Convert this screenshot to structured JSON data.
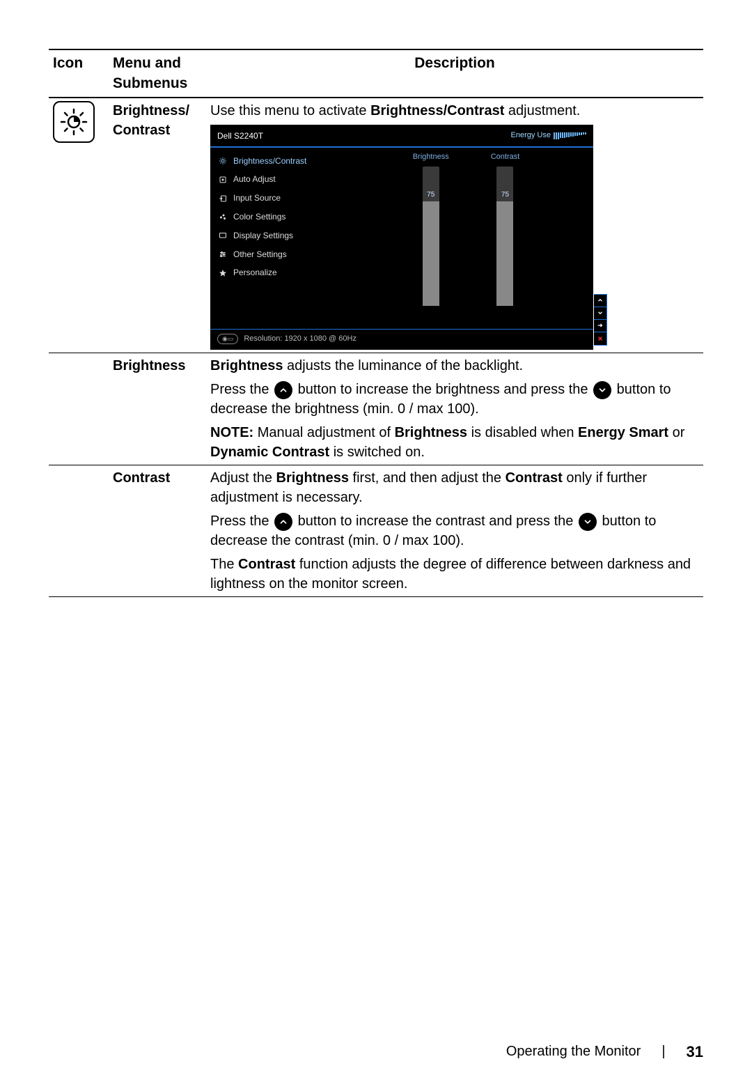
{
  "headers": {
    "icon": "Icon",
    "menu": "Menu and Submenus",
    "desc": "Description"
  },
  "row1": {
    "menu_l1": "Brightness/",
    "menu_l2": "Contrast",
    "desc_pre": "Use this menu to activate ",
    "desc_bold": "Brightness/Contrast",
    "desc_post": " adjustment."
  },
  "osd": {
    "model": "Dell S2240T",
    "energy_label": "Energy Use",
    "energy_bars": [
      10,
      10,
      10,
      8,
      8,
      8,
      7,
      7,
      6,
      6,
      5,
      5,
      4,
      4,
      3,
      3
    ],
    "menu": [
      {
        "label": "Brightness/Contrast",
        "active": true,
        "icon": "sun"
      },
      {
        "label": "Auto Adjust",
        "active": false,
        "icon": "target"
      },
      {
        "label": "Input Source",
        "active": false,
        "icon": "input"
      },
      {
        "label": "Color Settings",
        "active": false,
        "icon": "palette"
      },
      {
        "label": "Display Settings",
        "active": false,
        "icon": "display"
      },
      {
        "label": "Other Settings",
        "active": false,
        "icon": "sliders"
      },
      {
        "label": "Personalize",
        "active": false,
        "icon": "star"
      }
    ],
    "sliders": {
      "brightness": {
        "label": "Brightness",
        "value": 75,
        "max": 100
      },
      "contrast": {
        "label": "Contrast",
        "value": 75,
        "max": 100
      }
    },
    "footer": "Resolution: 1920 x 1080 @ 60Hz",
    "side_buttons": [
      "up",
      "down",
      "right",
      "close"
    ],
    "colors": {
      "bg": "#000000",
      "accent": "#1e6fd6",
      "active_text": "#9ecfff",
      "slider_bg": "#3a3a3a",
      "slider_fill": "#888888",
      "close": "#ff3838"
    }
  },
  "row2": {
    "menu": "Brightness",
    "p1_bold": "Brightness",
    "p1_rest": " adjusts the luminance of the backlight.",
    "p2_a": "Press the ",
    "p2_b": " button to increase the brightness and press the ",
    "p2_c": " button to decrease the brightness (min. 0 / max 100).",
    "note_label": "NOTE:",
    "note_a": " Manual adjustment of ",
    "note_b1": "Brightness",
    "note_c": " is disabled when ",
    "note_b2": "Energy Smart",
    "note_d": " or ",
    "note_b3": "Dynamic Contrast",
    "note_e": " is switched on."
  },
  "row3": {
    "menu": "Contrast",
    "p1_a": "Adjust the ",
    "p1_b1": "Brightness",
    "p1_c": " first, and then adjust the ",
    "p1_b2": "Contrast",
    "p1_d": " only if further adjustment is necessary.",
    "p2_a": "Press the ",
    "p2_b": " button to increase the contrast and press the ",
    "p2_c": " button to decrease the contrast (min. 0 / max 100).",
    "p3_a": "The ",
    "p3_b": "Contrast",
    "p3_c": " function adjusts the degree of difference between darkness and lightness on the monitor screen."
  },
  "footer": {
    "section": "Operating the Monitor",
    "page": "31"
  }
}
